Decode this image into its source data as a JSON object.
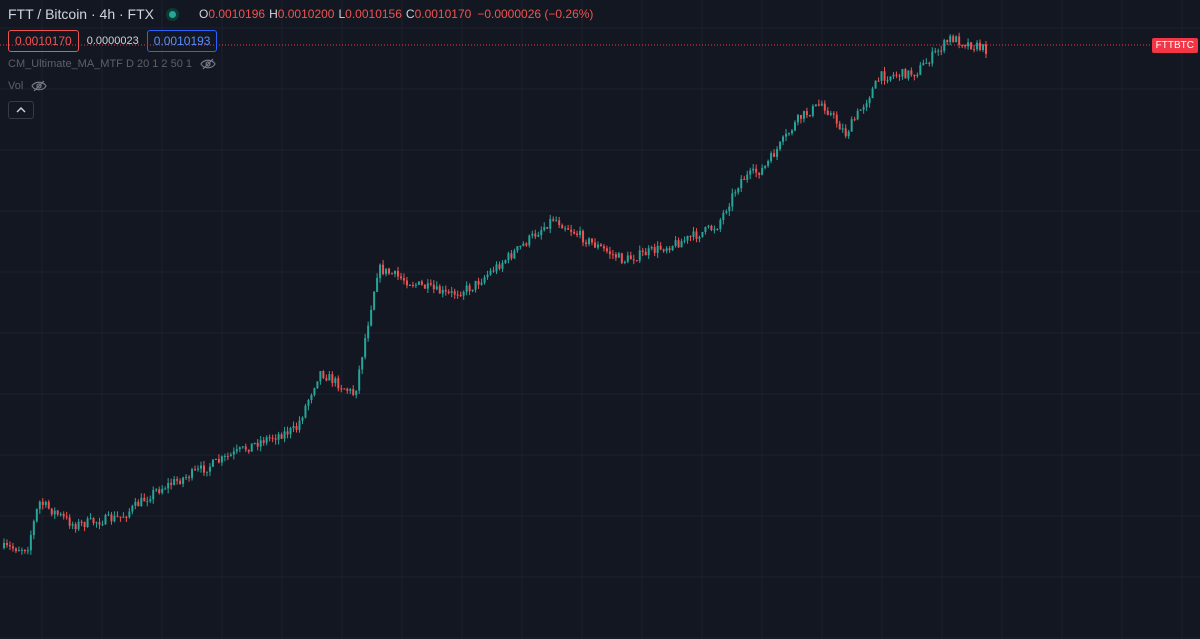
{
  "legend": {
    "symbol": "FTT / Bitcoin · 4h · FTX",
    "o_label": "O",
    "o_value": "0.0010196",
    "h_label": "H",
    "h_value": "0.0010200",
    "l_label": "L",
    "l_value": "0.0010156",
    "c_label": "C",
    "c_value": "0.0010170",
    "change": "−0.0000026 (−0.26%)"
  },
  "trade": {
    "sell_price": "0.0010170",
    "spread": "0.0000023",
    "buy_price": "0.0010193"
  },
  "indicators": [
    {
      "label": "CM_Ultimate_MA_MTF D 20 1 2 50 1",
      "icon": "eye-crossed-icon"
    },
    {
      "label": "Vol",
      "icon": "eye-crossed-icon"
    }
  ],
  "collapse_icon": "chevron-up-icon",
  "price_tag": "FTTBTC",
  "colors": {
    "background": "#131722",
    "grid": "#1e222d",
    "up": "#26a69a",
    "down": "#ef5350",
    "last_price_line": "#f23645"
  },
  "chart_data": {
    "type": "candlestick",
    "trend": [
      [
        0,
        0.0
      ],
      [
        0.02,
        0.0
      ],
      [
        0.03,
        0.12
      ],
      [
        0.06,
        0.06
      ],
      [
        0.1,
        0.08
      ],
      [
        0.13,
        0.15
      ],
      [
        0.18,
        0.22
      ],
      [
        0.22,
        0.28
      ],
      [
        0.25,
        0.31
      ],
      [
        0.27,
        0.46
      ],
      [
        0.3,
        0.4
      ],
      [
        0.32,
        0.73
      ],
      [
        0.35,
        0.69
      ],
      [
        0.38,
        0.66
      ],
      [
        0.4,
        0.68
      ],
      [
        0.44,
        0.78
      ],
      [
        0.47,
        0.86
      ],
      [
        0.5,
        0.8
      ],
      [
        0.53,
        0.75
      ],
      [
        0.58,
        0.8
      ],
      [
        0.61,
        0.84
      ],
      [
        0.63,
        0.96
      ],
      [
        0.65,
        0.99
      ],
      [
        0.68,
        1.12
      ],
      [
        0.7,
        1.16
      ],
      [
        0.72,
        1.08
      ],
      [
        0.75,
        1.23
      ],
      [
        0.78,
        1.24
      ],
      [
        0.81,
        1.33
      ],
      [
        0.84,
        1.3
      ]
    ]
  }
}
